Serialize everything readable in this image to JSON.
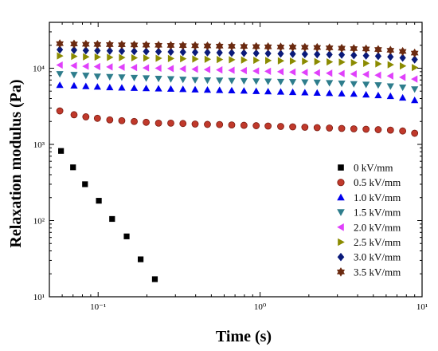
{
  "chart_data": {
    "type": "scatter",
    "xlabel": "Time (s)",
    "ylabel": "Relaxation modulus (Pa)",
    "xscale": "log",
    "yscale": "log",
    "xlim": [
      0.05,
      10
    ],
    "ylim": [
      10,
      40000
    ],
    "x_ticks": [
      {
        "value": 0.1,
        "label": "10⁻¹"
      },
      {
        "value": 1,
        "label": "10⁰"
      },
      {
        "value": 10,
        "label": "10¹"
      }
    ],
    "y_ticks": [
      {
        "value": 10,
        "label": "10¹"
      },
      {
        "value": 100,
        "label": "10²"
      },
      {
        "value": 1000,
        "label": "10³"
      },
      {
        "value": 10000,
        "label": "10⁴"
      }
    ],
    "legend_position": "right",
    "series": [
      {
        "name": "0 kV/mm",
        "marker": "square",
        "color": "#000000",
        "x": [
          0.059,
          0.07,
          0.083,
          0.101,
          0.122,
          0.15,
          0.183,
          0.224
        ],
        "y": [
          820,
          500,
          300,
          182,
          105,
          62,
          31,
          17
        ]
      },
      {
        "name": "0.5 kV/mm",
        "marker": "circle",
        "color": "#c0392b",
        "x": [
          0.058,
          0.071,
          0.084,
          0.099,
          0.118,
          0.14,
          0.167,
          0.198,
          0.236,
          0.281,
          0.334,
          0.397,
          0.473,
          0.562,
          0.668,
          0.795,
          0.946,
          1.12,
          1.34,
          1.59,
          1.89,
          2.25,
          2.68,
          3.19,
          3.79,
          4.51,
          5.36,
          6.38,
          7.59,
          9.0
        ],
        "y": [
          2750,
          2450,
          2300,
          2200,
          2100,
          2050,
          2000,
          1950,
          1900,
          1900,
          1880,
          1850,
          1830,
          1820,
          1800,
          1780,
          1760,
          1740,
          1720,
          1700,
          1680,
          1660,
          1640,
          1620,
          1600,
          1580,
          1560,
          1540,
          1500,
          1400
        ]
      },
      {
        "name": "1.0 kV/mm",
        "marker": "triangle-up",
        "color": "#0000ee",
        "x": [
          0.058,
          0.071,
          0.084,
          0.099,
          0.118,
          0.14,
          0.167,
          0.198,
          0.236,
          0.281,
          0.334,
          0.397,
          0.473,
          0.562,
          0.668,
          0.795,
          0.946,
          1.12,
          1.34,
          1.59,
          1.89,
          2.25,
          2.68,
          3.19,
          3.79,
          4.51,
          5.36,
          6.38,
          7.59,
          9.0
        ],
        "y": [
          6000,
          5900,
          5800,
          5700,
          5600,
          5550,
          5500,
          5450,
          5400,
          5350,
          5300,
          5250,
          5200,
          5150,
          5100,
          5050,
          5000,
          4950,
          4900,
          4850,
          4800,
          4750,
          4700,
          4650,
          4600,
          4500,
          4400,
          4300,
          4100,
          3800
        ]
      },
      {
        "name": "1.5 kV/mm",
        "marker": "triangle-down",
        "color": "#2e7d8c",
        "x": [
          0.058,
          0.071,
          0.084,
          0.099,
          0.118,
          0.14,
          0.167,
          0.198,
          0.236,
          0.281,
          0.334,
          0.397,
          0.473,
          0.562,
          0.668,
          0.795,
          0.946,
          1.12,
          1.34,
          1.59,
          1.89,
          2.25,
          2.68,
          3.19,
          3.79,
          4.51,
          5.36,
          6.38,
          7.59,
          9.0
        ],
        "y": [
          8400,
          8200,
          8000,
          7800,
          7700,
          7600,
          7500,
          7400,
          7300,
          7200,
          7100,
          7000,
          6950,
          6900,
          6850,
          6800,
          6750,
          6700,
          6650,
          6600,
          6550,
          6500,
          6400,
          6300,
          6200,
          6100,
          6000,
          5800,
          5600,
          5300
        ]
      },
      {
        "name": "2.0 kV/mm",
        "marker": "triangle-left",
        "color": "#e040fb",
        "x": [
          0.058,
          0.071,
          0.084,
          0.099,
          0.118,
          0.14,
          0.167,
          0.198,
          0.236,
          0.281,
          0.334,
          0.397,
          0.473,
          0.562,
          0.668,
          0.795,
          0.946,
          1.12,
          1.34,
          1.59,
          1.89,
          2.25,
          2.68,
          3.19,
          3.79,
          4.51,
          5.36,
          6.38,
          7.59,
          9.0
        ],
        "y": [
          11000,
          10800,
          10600,
          10500,
          10400,
          10300,
          10200,
          10100,
          10000,
          9900,
          9800,
          9700,
          9600,
          9500,
          9400,
          9300,
          9200,
          9100,
          9000,
          8900,
          8800,
          8700,
          8600,
          8500,
          8400,
          8300,
          8100,
          7900,
          7600,
          7200
        ]
      },
      {
        "name": "2.5 kV/mm",
        "marker": "triangle-right",
        "color": "#8b8b00",
        "x": [
          0.058,
          0.071,
          0.084,
          0.099,
          0.118,
          0.14,
          0.167,
          0.198,
          0.236,
          0.281,
          0.334,
          0.397,
          0.473,
          0.562,
          0.668,
          0.795,
          0.946,
          1.12,
          1.34,
          1.59,
          1.89,
          2.25,
          2.68,
          3.19,
          3.79,
          4.51,
          5.36,
          6.38,
          7.59,
          9.0
        ],
        "y": [
          14500,
          14300,
          14100,
          14000,
          13900,
          13800,
          13700,
          13600,
          13500,
          13400,
          13300,
          13200,
          13100,
          13000,
          12900,
          12800,
          12700,
          12600,
          12500,
          12400,
          12300,
          12200,
          12100,
          12000,
          11800,
          11600,
          11400,
          11100,
          10700,
          10200
        ]
      },
      {
        "name": "3.0 kV/mm",
        "marker": "diamond",
        "color": "#0a1a7a",
        "x": [
          0.058,
          0.071,
          0.084,
          0.099,
          0.118,
          0.14,
          0.167,
          0.198,
          0.236,
          0.281,
          0.334,
          0.397,
          0.473,
          0.562,
          0.668,
          0.795,
          0.946,
          1.12,
          1.34,
          1.59,
          1.89,
          2.25,
          2.68,
          3.19,
          3.79,
          4.51,
          5.36,
          6.38,
          7.59,
          9.0
        ],
        "y": [
          17500,
          17300,
          17100,
          17000,
          16900,
          16800,
          16700,
          16600,
          16500,
          16400,
          16300,
          16200,
          16100,
          16000,
          15900,
          15800,
          15700,
          15600,
          15500,
          15400,
          15300,
          15200,
          15100,
          15000,
          14800,
          14600,
          14400,
          14100,
          13700,
          13000
        ]
      },
      {
        "name": "3.5 kV/mm",
        "marker": "star",
        "color": "#6b2a10",
        "x": [
          0.058,
          0.071,
          0.084,
          0.099,
          0.118,
          0.14,
          0.167,
          0.198,
          0.236,
          0.281,
          0.334,
          0.397,
          0.473,
          0.562,
          0.668,
          0.795,
          0.946,
          1.12,
          1.34,
          1.59,
          1.89,
          2.25,
          2.68,
          3.19,
          3.79,
          4.51,
          5.36,
          6.38,
          7.59,
          9.0
        ],
        "y": [
          21000,
          20800,
          20600,
          20500,
          20400,
          20300,
          20200,
          20100,
          20000,
          19900,
          19800,
          19700,
          19600,
          19500,
          19400,
          19300,
          19200,
          19100,
          19000,
          18900,
          18800,
          18700,
          18500,
          18300,
          18100,
          17900,
          17600,
          17200,
          16600,
          15800
        ]
      }
    ]
  }
}
